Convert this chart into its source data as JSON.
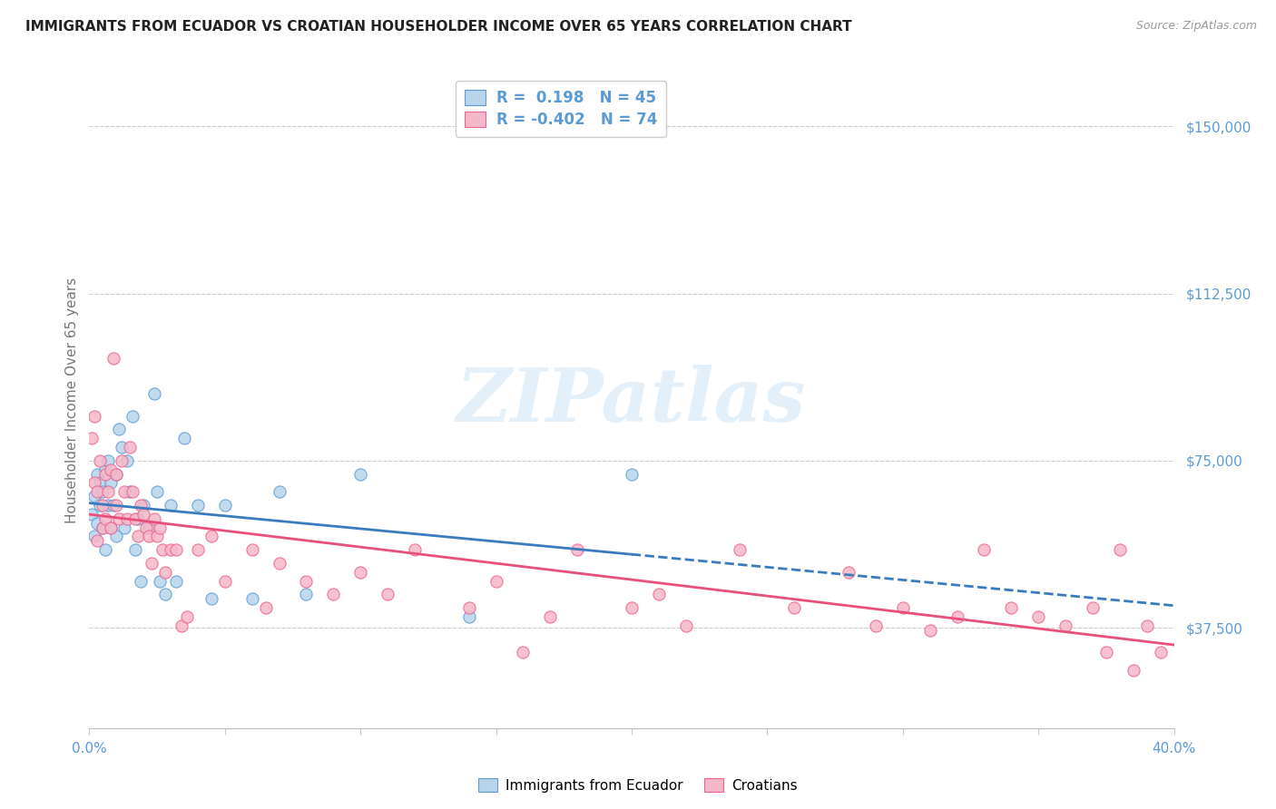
{
  "title": "IMMIGRANTS FROM ECUADOR VS CROATIAN HOUSEHOLDER INCOME OVER 65 YEARS CORRELATION CHART",
  "source": "Source: ZipAtlas.com",
  "ylabel": "Householder Income Over 65 years",
  "right_ytick_labels": [
    "$150,000",
    "$112,500",
    "$75,000",
    "$37,500"
  ],
  "right_ytick_values": [
    150000,
    112500,
    75000,
    37500
  ],
  "ylim": [
    15000,
    162000
  ],
  "xlim": [
    0.0,
    0.4
  ],
  "watermark": "ZIPatlas",
  "ecuador_color": "#b8d4ea",
  "croatian_color": "#f5b8c8",
  "ecuador_edge_color": "#5b9bd5",
  "croatian_edge_color": "#f06090",
  "ecuador_line_color": "#3a7bbf",
  "croatian_line_color": "#e8507a",
  "title_color": "#222222",
  "source_color": "#999999",
  "axis_color": "#5b9bd5",
  "legend_text_color": "#5b9bd5",
  "ecuador_scatter_x": [
    0.001,
    0.002,
    0.002,
    0.003,
    0.003,
    0.004,
    0.004,
    0.005,
    0.005,
    0.006,
    0.006,
    0.007,
    0.007,
    0.008,
    0.008,
    0.009,
    0.01,
    0.01,
    0.011,
    0.012,
    0.013,
    0.014,
    0.015,
    0.016,
    0.017,
    0.018,
    0.019,
    0.02,
    0.022,
    0.024,
    0.025,
    0.026,
    0.028,
    0.03,
    0.032,
    0.035,
    0.04,
    0.045,
    0.05,
    0.06,
    0.07,
    0.08,
    0.1,
    0.14,
    0.2
  ],
  "ecuador_scatter_y": [
    63000,
    58000,
    67000,
    72000,
    61000,
    65000,
    70000,
    60000,
    68000,
    55000,
    73000,
    65000,
    75000,
    60000,
    70000,
    65000,
    72000,
    58000,
    82000,
    78000,
    60000,
    75000,
    68000,
    85000,
    55000,
    62000,
    48000,
    65000,
    60000,
    90000,
    68000,
    48000,
    45000,
    65000,
    48000,
    80000,
    65000,
    44000,
    65000,
    44000,
    68000,
    45000,
    72000,
    40000,
    72000
  ],
  "croatian_scatter_x": [
    0.001,
    0.002,
    0.002,
    0.003,
    0.003,
    0.004,
    0.005,
    0.005,
    0.006,
    0.006,
    0.007,
    0.008,
    0.008,
    0.009,
    0.01,
    0.01,
    0.011,
    0.012,
    0.013,
    0.014,
    0.015,
    0.016,
    0.017,
    0.018,
    0.019,
    0.02,
    0.021,
    0.022,
    0.023,
    0.024,
    0.025,
    0.026,
    0.027,
    0.028,
    0.03,
    0.032,
    0.034,
    0.036,
    0.04,
    0.045,
    0.05,
    0.06,
    0.065,
    0.07,
    0.08,
    0.09,
    0.1,
    0.11,
    0.12,
    0.14,
    0.15,
    0.16,
    0.17,
    0.18,
    0.2,
    0.21,
    0.22,
    0.24,
    0.26,
    0.28,
    0.29,
    0.3,
    0.31,
    0.32,
    0.33,
    0.34,
    0.35,
    0.36,
    0.37,
    0.38,
    0.39,
    0.395,
    0.385,
    0.375
  ],
  "croatian_scatter_y": [
    80000,
    85000,
    70000,
    68000,
    57000,
    75000,
    65000,
    60000,
    72000,
    62000,
    68000,
    73000,
    60000,
    98000,
    65000,
    72000,
    62000,
    75000,
    68000,
    62000,
    78000,
    68000,
    62000,
    58000,
    65000,
    63000,
    60000,
    58000,
    52000,
    62000,
    58000,
    60000,
    55000,
    50000,
    55000,
    55000,
    38000,
    40000,
    55000,
    58000,
    48000,
    55000,
    42000,
    52000,
    48000,
    45000,
    50000,
    45000,
    55000,
    42000,
    48000,
    32000,
    40000,
    55000,
    42000,
    45000,
    38000,
    55000,
    42000,
    50000,
    38000,
    42000,
    37000,
    40000,
    55000,
    42000,
    40000,
    38000,
    42000,
    55000,
    38000,
    32000,
    28000,
    32000
  ]
}
